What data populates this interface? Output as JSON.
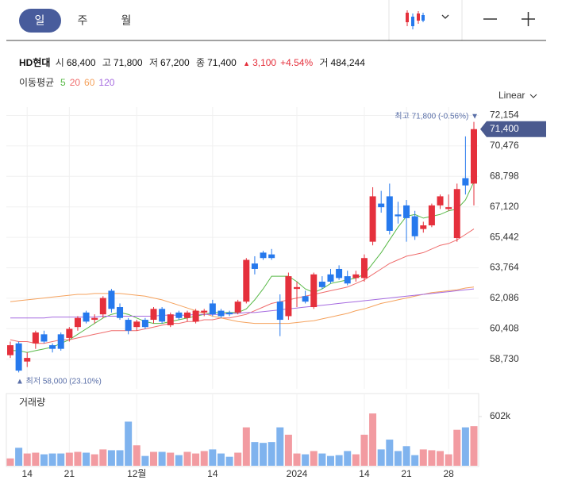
{
  "tabs": [
    "일",
    "주",
    "월"
  ],
  "header": {
    "name": "HD현대",
    "open_label": "시",
    "open": "68,400",
    "high_label": "고",
    "high": "71,800",
    "low_label": "저",
    "low": "67,200",
    "close_label": "종",
    "close": "71,400",
    "change_arrow": "▲",
    "change": "3,100",
    "change_pct": "+4.54%",
    "volume_label": "거",
    "volume": "484,244"
  },
  "ma_title": "이동평균",
  "scale_label": "Linear",
  "chart_data": [
    {
      "type": "candlestick",
      "up_color": "#e5303c",
      "down_color": "#2679ed",
      "grid": true,
      "categories": [
        null,
        null,
        "14",
        null,
        null,
        null,
        null,
        "21",
        null,
        null,
        null,
        null,
        null,
        null,
        null,
        "12월",
        null,
        null,
        null,
        null,
        null,
        null,
        null,
        null,
        "14",
        null,
        null,
        null,
        null,
        null,
        null,
        null,
        null,
        null,
        "2024",
        null,
        null,
        null,
        null,
        null,
        null,
        null,
        "14",
        null,
        null,
        null,
        null,
        "21",
        null,
        null,
        null,
        null,
        "28",
        null,
        null,
        null
      ],
      "open": [
        58950,
        59600,
        58600,
        59600,
        60100,
        59500,
        60100,
        59900,
        60500,
        61300,
        60900,
        61200,
        62500,
        61600,
        60900,
        60500,
        60900,
        60900,
        61500,
        60600,
        61300,
        61000,
        60800,
        61300,
        61800,
        61400,
        61300,
        61300,
        61900,
        64000,
        64600,
        64500,
        61900,
        61100,
        62600,
        62200,
        61600,
        63000,
        63400,
        63700,
        63300,
        63200,
        63200,
        65200,
        67300,
        67700,
        66700,
        67200,
        66600,
        65900,
        66100,
        67200,
        67000,
        65400,
        68700,
        68400
      ],
      "high": [
        59700,
        59700,
        59100,
        60300,
        60300,
        59600,
        60200,
        60500,
        61100,
        61400,
        61200,
        62200,
        62600,
        61800,
        61000,
        60900,
        61000,
        61600,
        61600,
        61300,
        61400,
        61400,
        61500,
        61500,
        62000,
        61500,
        61400,
        62000,
        64300,
        64400,
        64700,
        64800,
        62300,
        63500,
        63000,
        62500,
        63500,
        63300,
        63700,
        63900,
        63600,
        63600,
        64500,
        68200,
        68000,
        68400,
        67400,
        67500,
        66900,
        66300,
        67300,
        67800,
        67800,
        68400,
        71000,
        71800
      ],
      "low": [
        58800,
        58000,
        58300,
        59300,
        59600,
        59100,
        59200,
        59700,
        60300,
        60700,
        60700,
        61000,
        61300,
        60900,
        60100,
        60300,
        60400,
        60700,
        60700,
        60500,
        60900,
        60800,
        60700,
        61100,
        61100,
        61000,
        61100,
        61200,
        61800,
        63400,
        64200,
        64200,
        60000,
        60900,
        61600,
        61800,
        61500,
        62600,
        62900,
        63100,
        62800,
        63000,
        63000,
        65000,
        66800,
        65600,
        66200,
        65200,
        65300,
        65700,
        66000,
        67000,
        66900,
        65200,
        67800,
        67200
      ],
      "close": [
        59500,
        58100,
        58800,
        60200,
        59700,
        59300,
        59300,
        60400,
        61000,
        60800,
        61000,
        62100,
        61500,
        61000,
        60300,
        60800,
        60500,
        61500,
        60800,
        61200,
        61000,
        61300,
        61400,
        61400,
        61200,
        61100,
        61200,
        61900,
        64200,
        63700,
        64300,
        64300,
        60900,
        63300,
        62700,
        61900,
        63400,
        62700,
        63000,
        63200,
        62900,
        63400,
        64300,
        67700,
        67100,
        65800,
        66600,
        66500,
        65500,
        66100,
        67200,
        67700,
        67100,
        68100,
        68300,
        71400
      ],
      "series": [
        {
          "name": "5",
          "color": "#58b947",
          "values": [
            59200,
            59200,
            59100,
            59200,
            59300,
            59400,
            59600,
            59800,
            60100,
            60400,
            60700,
            61000,
            61200,
            61300,
            61200,
            61000,
            60800,
            60700,
            60700,
            60800,
            60900,
            61000,
            61100,
            61200,
            61300,
            61300,
            61300,
            61300,
            61500,
            62000,
            62600,
            63300,
            63300,
            63300,
            63000,
            62600,
            62400,
            62600,
            62900,
            63000,
            63100,
            63200,
            63400,
            64000,
            64600,
            65300,
            66000,
            66600,
            66700,
            66500,
            66600,
            66700,
            66900,
            67000,
            67500,
            68500
          ]
        },
        {
          "name": "20",
          "color": "#ef6c6c",
          "values": [
            59800,
            59700,
            59700,
            59600,
            59600,
            59700,
            59800,
            59800,
            59900,
            60000,
            60100,
            60200,
            60300,
            60300,
            60300,
            60300,
            60400,
            60500,
            60600,
            60700,
            60700,
            60800,
            60800,
            60900,
            60900,
            61000,
            61000,
            61100,
            61200,
            61400,
            61600,
            61800,
            61900,
            62000,
            62100,
            62200,
            62300,
            62400,
            62500,
            62600,
            62700,
            62900,
            63100,
            63400,
            63700,
            64000,
            64200,
            64400,
            64500,
            64600,
            64800,
            65000,
            65100,
            65300,
            65600,
            65900
          ]
        },
        {
          "name": "60",
          "color": "#f5a25d",
          "values": [
            61900,
            61950,
            62000,
            62050,
            62100,
            62150,
            62200,
            62250,
            62300,
            62300,
            62350,
            62350,
            62350,
            62350,
            62300,
            62250,
            62200,
            62100,
            62000,
            61850,
            61700,
            61550,
            61400,
            61250,
            61100,
            61000,
            60900,
            60800,
            60750,
            60700,
            60700,
            60700,
            60700,
            60700,
            60750,
            60800,
            60850,
            60950,
            61050,
            61150,
            61250,
            61400,
            61500,
            61650,
            61800,
            61900,
            62000,
            62100,
            62200,
            62300,
            62400,
            62450,
            62500,
            62550,
            62650,
            62700
          ]
        },
        {
          "name": "120",
          "color": "#a66be0",
          "values": [
            61000,
            61000,
            61000,
            61000,
            61000,
            61050,
            61050,
            61050,
            61050,
            61050,
            61050,
            61100,
            61100,
            61100,
            61100,
            61100,
            61100,
            61100,
            61150,
            61150,
            61150,
            61150,
            61200,
            61200,
            61200,
            61200,
            61250,
            61250,
            61300,
            61300,
            61350,
            61400,
            61450,
            61500,
            61550,
            61600,
            61650,
            61700,
            61750,
            61800,
            61850,
            61900,
            61950,
            62000,
            62050,
            62100,
            62150,
            62200,
            62250,
            62300,
            62350,
            62400,
            62450,
            62500,
            62550,
            62600
          ]
        }
      ],
      "ylim": [
        57100,
        72700
      ],
      "yticks": [
        {
          "value": 72154,
          "label": "72,154"
        },
        {
          "value": 70476,
          "label": "70,476"
        },
        {
          "value": 68798,
          "label": "68,798"
        },
        {
          "value": 67120,
          "label": "67,120"
        },
        {
          "value": 65442,
          "label": "65,442"
        },
        {
          "value": 63764,
          "label": "63,764"
        },
        {
          "value": 62086,
          "label": "62,086"
        },
        {
          "value": 60408,
          "label": "60,408"
        },
        {
          "value": 58730,
          "label": "58,730"
        }
      ],
      "high_annotation": "최고 71,800 (-0.56%) ▼",
      "low_annotation": "▲ 최저 58,000 (23.10%)",
      "last_price_label": "71,400"
    },
    {
      "type": "bar",
      "title": "거래량",
      "up_color": "#f29ba1",
      "down_color": "#7fb3ee",
      "values": [
        90000,
        220000,
        150000,
        160000,
        140000,
        150000,
        150000,
        160000,
        170000,
        160000,
        140000,
        200000,
        190000,
        190000,
        540000,
        250000,
        120000,
        170000,
        170000,
        160000,
        130000,
        170000,
        150000,
        180000,
        200000,
        150000,
        110000,
        160000,
        470000,
        290000,
        280000,
        290000,
        470000,
        380000,
        150000,
        140000,
        180000,
        150000,
        120000,
        130000,
        180000,
        140000,
        380000,
        640000,
        200000,
        320000,
        180000,
        240000,
        130000,
        200000,
        190000,
        180000,
        140000,
        440000,
        470000,
        484244
      ],
      "ylim": [
        0,
        874000
      ],
      "yticks": [
        {
          "value": 602000,
          "label": "602k"
        }
      ]
    }
  ]
}
